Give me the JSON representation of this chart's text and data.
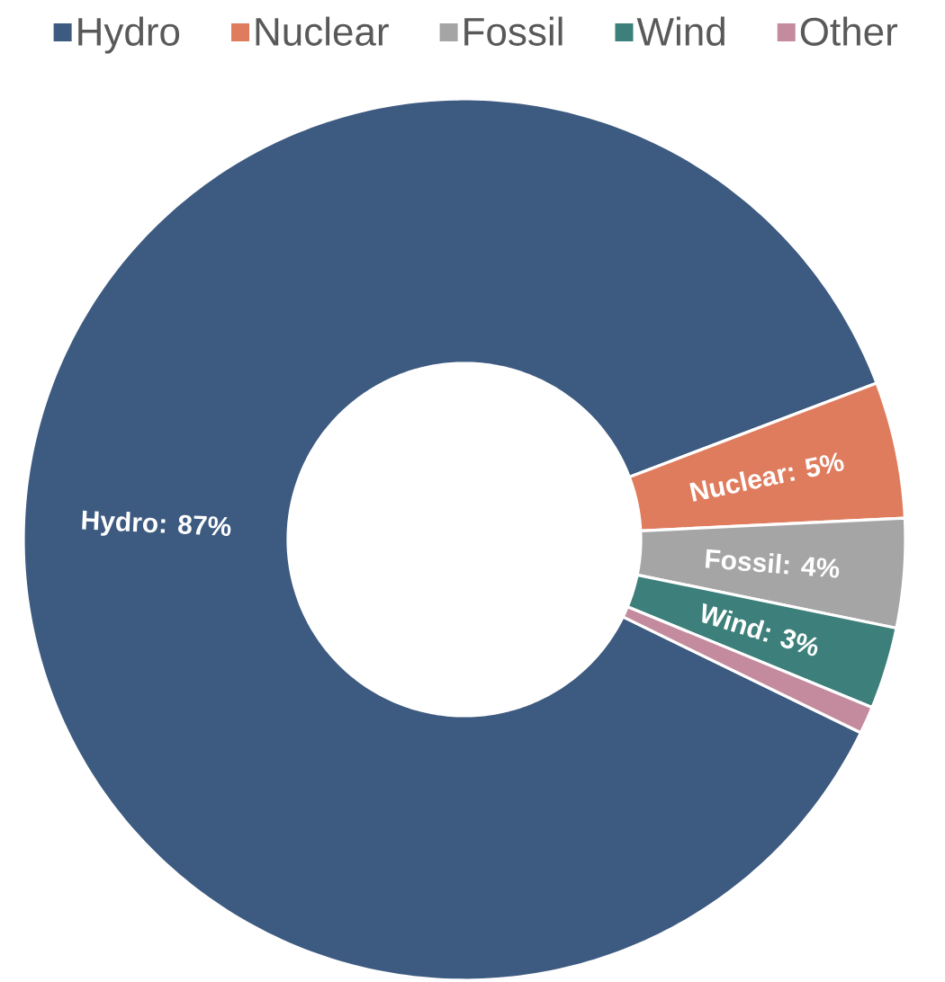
{
  "chart_data": {
    "type": "donut",
    "categories": [
      "Hydro",
      "Nuclear",
      "Fossil",
      "Wind",
      "Other"
    ],
    "values": [
      87,
      5,
      4,
      3,
      1
    ],
    "colors": [
      "#3d5a80",
      "#e07c5e",
      "#a5a5a5",
      "#3d7f7a",
      "#c48a9e"
    ],
    "value_labels": [
      "Hydro: 87%",
      "Nuclear: 5%",
      "Fossil: 4%",
      "Wind: 3%",
      null
    ],
    "legend": "top"
  }
}
